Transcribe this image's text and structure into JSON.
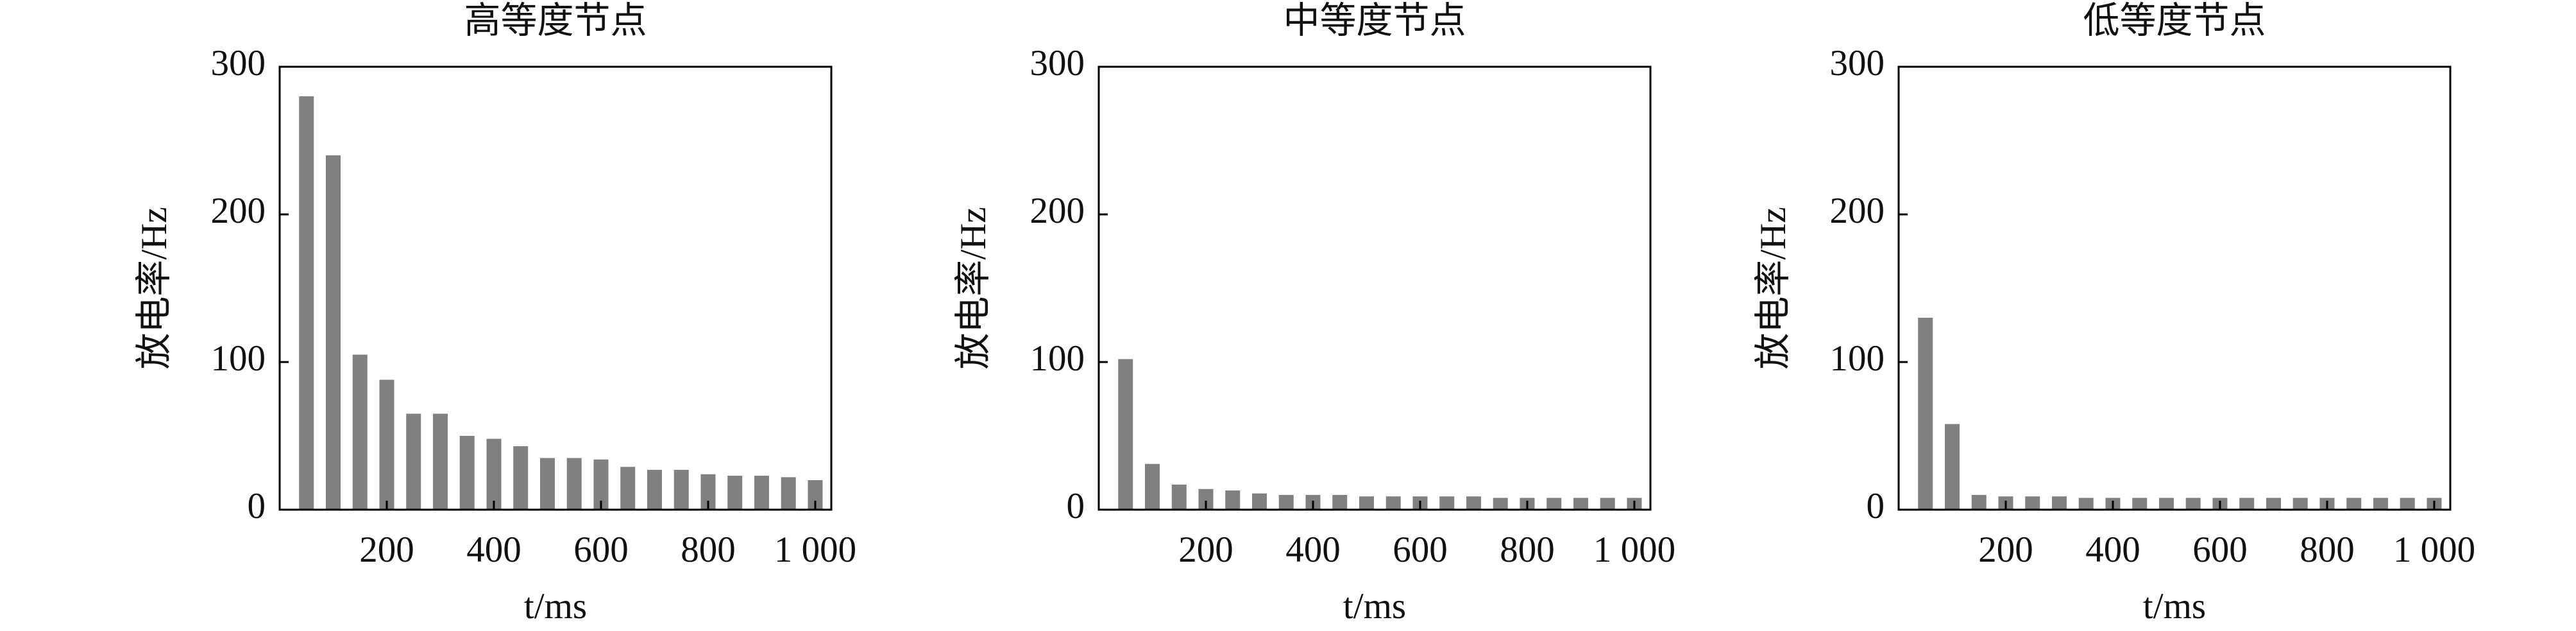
{
  "chart_data": [
    {
      "type": "bar",
      "title": "高等度节点",
      "xlabel": "t/ms",
      "ylabel": "放电率/Hz",
      "color": "#808080",
      "x": [
        50,
        100,
        150,
        200,
        250,
        300,
        350,
        400,
        450,
        500,
        550,
        600,
        650,
        700,
        750,
        800,
        850,
        900,
        950,
        1000
      ],
      "values": [
        280,
        240,
        105,
        88,
        65,
        65,
        50,
        48,
        43,
        35,
        35,
        34,
        29,
        27,
        27,
        24,
        23,
        23,
        22,
        20
      ],
      "xlim": [
        0,
        1030
      ],
      "xticks": [
        200,
        400,
        600,
        800,
        {
          "value": 1000,
          "label": "1 000"
        }
      ],
      "ylim": [
        0,
        300
      ],
      "yticks": [
        0,
        100,
        200,
        300
      ]
    },
    {
      "type": "bar",
      "title": "中等度节点",
      "xlabel": "t/ms",
      "ylabel": "放电率/Hz",
      "color": "#808080",
      "x": [
        50,
        100,
        150,
        200,
        250,
        300,
        350,
        400,
        450,
        500,
        550,
        600,
        650,
        700,
        750,
        800,
        850,
        900,
        950,
        1000
      ],
      "values": [
        102,
        31,
        17,
        14,
        13,
        11,
        10,
        10,
        10,
        9,
        9,
        9,
        9,
        9,
        8,
        8,
        8,
        8,
        8,
        8
      ],
      "xlim": [
        0,
        1030
      ],
      "xticks": [
        200,
        400,
        600,
        800,
        {
          "value": 1000,
          "label": "1 000"
        }
      ],
      "ylim": [
        0,
        300
      ],
      "yticks": [
        0,
        100,
        200,
        300
      ]
    },
    {
      "type": "bar",
      "title": "低等度节点",
      "xlabel": "t/ms",
      "ylabel": "放电率/Hz",
      "color": "#808080",
      "x": [
        50,
        100,
        150,
        200,
        250,
        300,
        350,
        400,
        450,
        500,
        550,
        600,
        650,
        700,
        750,
        800,
        850,
        900,
        950,
        1000
      ],
      "values": [
        130,
        58,
        10,
        9,
        9,
        9,
        8,
        8,
        8,
        8,
        8,
        8,
        8,
        8,
        8,
        8,
        8,
        8,
        8,
        8
      ],
      "xlim": [
        0,
        1030
      ],
      "xticks": [
        200,
        400,
        600,
        800,
        {
          "value": 1000,
          "label": "1 000"
        }
      ],
      "ylim": [
        0,
        300
      ],
      "yticks": [
        0,
        100,
        200,
        300
      ]
    }
  ]
}
